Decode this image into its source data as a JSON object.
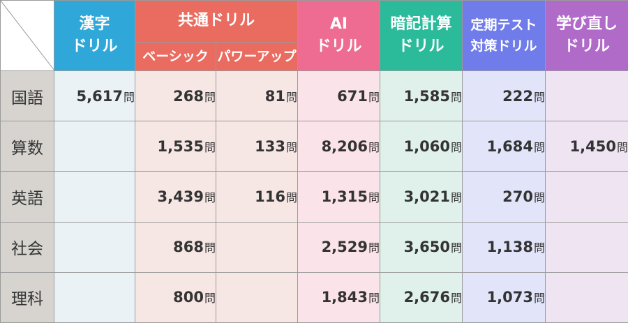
{
  "headers": {
    "kanji": [
      "漢字",
      "ドリル"
    ],
    "common": {
      "title": "共通ドリル",
      "basic": "ベーシック",
      "powerup": "パワーアップ"
    },
    "ai": [
      "AI",
      "ドリル"
    ],
    "anki": [
      "暗記計算",
      "ドリル"
    ],
    "teiki": [
      "定期テスト",
      "対策ドリル"
    ],
    "manabi": [
      "学び直し",
      "ドリル"
    ]
  },
  "unit": "問",
  "rows": [
    {
      "subject": "国語",
      "kanji": "5,617",
      "basic": "268",
      "powerup": "81",
      "ai": "671",
      "anki": "1,585",
      "teiki": "222",
      "manabi": ""
    },
    {
      "subject": "算数",
      "kanji": "",
      "basic": "1,535",
      "powerup": "133",
      "ai": "8,206",
      "anki": "1,060",
      "teiki": "1,684",
      "manabi": "1,450"
    },
    {
      "subject": "英語",
      "kanji": "",
      "basic": "3,439",
      "powerup": "116",
      "ai": "1,315",
      "anki": "3,021",
      "teiki": "270",
      "manabi": ""
    },
    {
      "subject": "社会",
      "kanji": "",
      "basic": "868",
      "powerup": "",
      "ai": "2,529",
      "anki": "3,650",
      "teiki": "1,138",
      "manabi": ""
    },
    {
      "subject": "理科",
      "kanji": "",
      "basic": "800",
      "powerup": "",
      "ai": "1,843",
      "anki": "2,676",
      "teiki": "1,073",
      "manabi": ""
    }
  ],
  "colors": {
    "kanji": "#2fa8d9",
    "common": "#ea6b60",
    "ai": "#ee6c91",
    "anki": "#2bbb9b",
    "teiki": "#6f7ce9",
    "manabi": "#b06bc9",
    "row_header": "#d7d4d0"
  }
}
